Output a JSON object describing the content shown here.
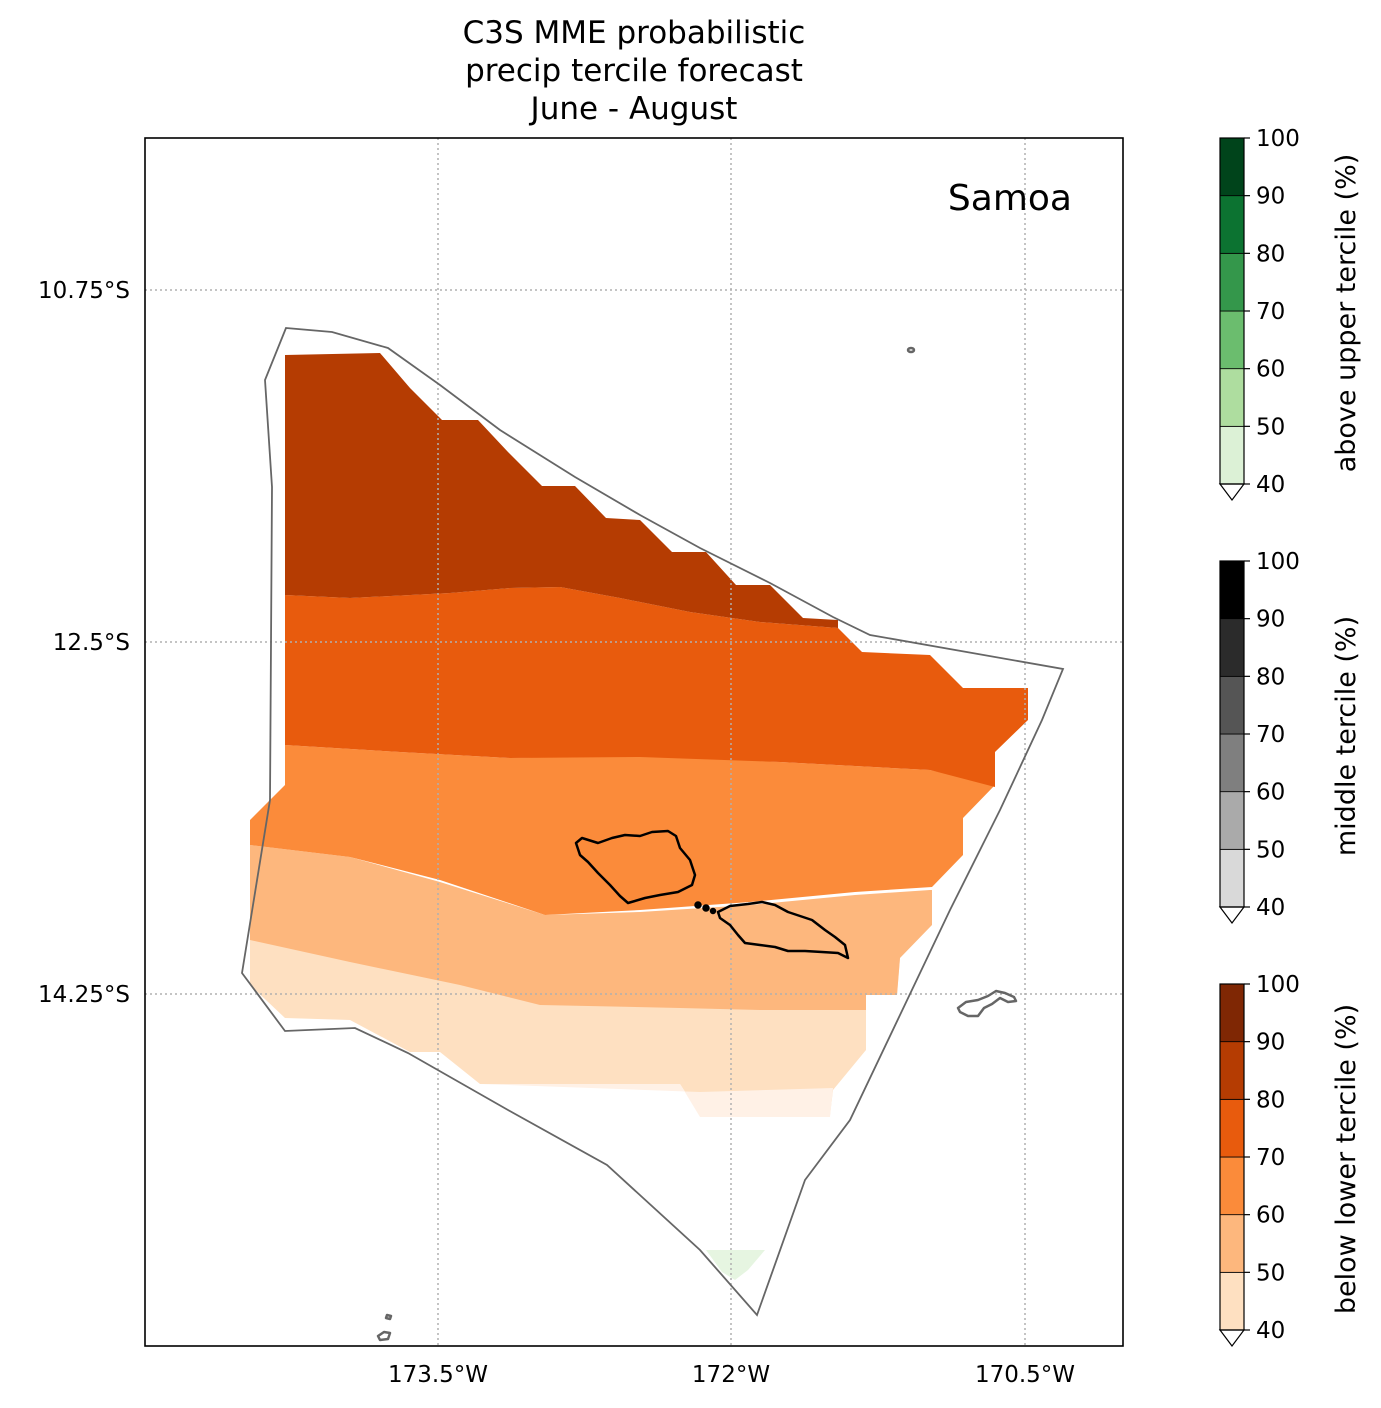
{
  "title_lines": [
    "C3S MME probabilistic",
    "precip tercile forecast",
    "June - August"
  ],
  "region_label": "Samoa",
  "map": {
    "lon_ticks": [
      "173.5°W",
      "172°W",
      "170.5°W"
    ],
    "lat_ticks": [
      "10.75°S",
      "12.5°S",
      "14.25°S"
    ],
    "lon_tick_values": [
      -173.5,
      -172.0,
      -170.5
    ],
    "lat_tick_values": [
      -10.75,
      -12.5,
      -14.25
    ],
    "lon_range": [
      -175.0,
      -170.0
    ],
    "lat_range": [
      -10.0,
      -16.0
    ],
    "gridlines": true
  },
  "colorbars": [
    {
      "label": "above upper tercile (%)",
      "ticks": [
        "40",
        "50",
        "60",
        "70",
        "80",
        "90",
        "100"
      ],
      "colors": [
        "#dcf1d6",
        "#aedd9f",
        "#6bbd6e",
        "#34974b",
        "#0c7331",
        "#00441b"
      ]
    },
    {
      "label": "middle tercile (%)",
      "ticks": [
        "40",
        "50",
        "60",
        "70",
        "80",
        "90",
        "100"
      ],
      "colors": [
        "#d9d9d9",
        "#aaaaaa",
        "#7f7f7f",
        "#555555",
        "#2b2b2b",
        "#000000"
      ]
    },
    {
      "label": "below lower tercile (%)",
      "ticks": [
        "40",
        "50",
        "60",
        "70",
        "80",
        "90",
        "100"
      ],
      "colors": [
        "#fee0c1",
        "#fdb77d",
        "#fb8b3a",
        "#e85b0d",
        "#b53c02",
        "#7f2704"
      ]
    }
  ],
  "forecast_bands": [
    {
      "category": "below lower tercile",
      "range": "80-90",
      "color": "#b53c02"
    },
    {
      "category": "below lower tercile",
      "range": "70-80",
      "color": "#e85b0d"
    },
    {
      "category": "below lower tercile",
      "range": "60-70",
      "color": "#fb8b3a"
    },
    {
      "category": "below lower tercile",
      "range": "50-60",
      "color": "#fdb77d"
    },
    {
      "category": "below lower tercile",
      "range": "40-50",
      "color": "#fee0c1"
    }
  ],
  "colors": {
    "eez_outline": "#666666",
    "coastline": "#000000",
    "neighbor_islands": "#666666",
    "grid": "#b0b0b0"
  }
}
